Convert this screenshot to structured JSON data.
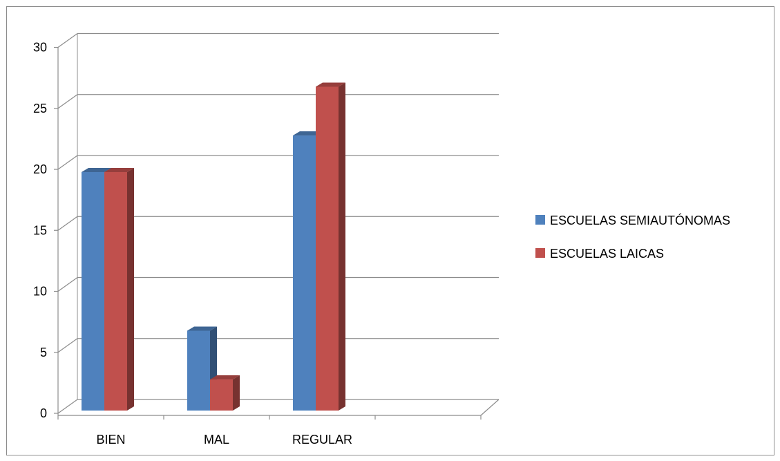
{
  "chart_data": {
    "type": "bar",
    "title": "",
    "xlabel": "",
    "ylabel": "",
    "categories": [
      "BIEN",
      "MAL",
      "REGULAR",
      ""
    ],
    "series": [
      {
        "name": "ESCUELAS SEMIAUTÓNOMAS",
        "color": "#4F81BD",
        "values": [
          20,
          7,
          23,
          null
        ]
      },
      {
        "name": "ESCUELAS LAICAS",
        "color": "#C0504D",
        "values": [
          20,
          3,
          27,
          null
        ]
      }
    ],
    "ylim": [
      0,
      30
    ],
    "yticks": [
      0,
      5,
      10,
      15,
      20,
      25,
      30
    ],
    "grid": true,
    "legend_position": "right",
    "style": "3d-clustered-column"
  }
}
